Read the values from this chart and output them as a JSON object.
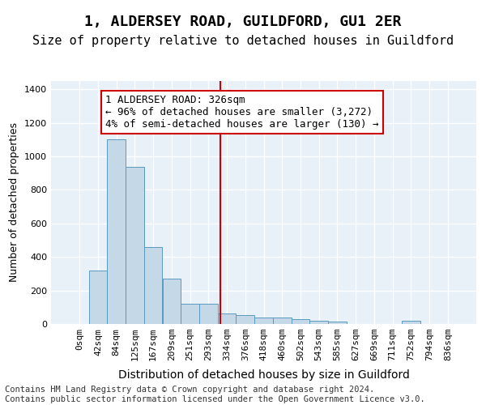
{
  "title": "1, ALDERSEY ROAD, GUILDFORD, GU1 2ER",
  "subtitle": "Size of property relative to detached houses in Guildford",
  "xlabel": "Distribution of detached houses by size in Guildford",
  "ylabel": "Number of detached properties",
  "footer1": "Contains HM Land Registry data © Crown copyright and database right 2024.",
  "footer2": "Contains public sector information licensed under the Open Government Licence v3.0.",
  "bar_labels": [
    "0sqm",
    "42sqm",
    "84sqm",
    "125sqm",
    "167sqm",
    "209sqm",
    "251sqm",
    "293sqm",
    "334sqm",
    "376sqm",
    "418sqm",
    "460sqm",
    "502sqm",
    "543sqm",
    "585sqm",
    "627sqm",
    "669sqm",
    "711sqm",
    "752sqm",
    "794sqm",
    "836sqm"
  ],
  "bar_values": [
    0,
    320,
    1100,
    940,
    460,
    270,
    120,
    120,
    65,
    55,
    40,
    40,
    30,
    20,
    15,
    0,
    0,
    0,
    20,
    0,
    0
  ],
  "bar_color": "#c5d8e8",
  "bar_edge_color": "#5a9abf",
  "vline_x": 7.65,
  "vline_color": "#cc0000",
  "annotation_text": "1 ALDERSEY ROAD: 326sqm\n← 96% of detached houses are smaller (3,272)\n4% of semi-detached houses are larger (130) →",
  "annotation_box_color": "#cc0000",
  "ylim": [
    0,
    1450
  ],
  "yticks": [
    0,
    200,
    400,
    600,
    800,
    1000,
    1200,
    1400
  ],
  "bg_color": "#e8f0f8",
  "grid_color": "#ffffff",
  "title_fontsize": 13,
  "subtitle_fontsize": 11,
  "xlabel_fontsize": 10,
  "ylabel_fontsize": 9,
  "tick_fontsize": 8,
  "annotation_fontsize": 9,
  "footer_fontsize": 7.5
}
